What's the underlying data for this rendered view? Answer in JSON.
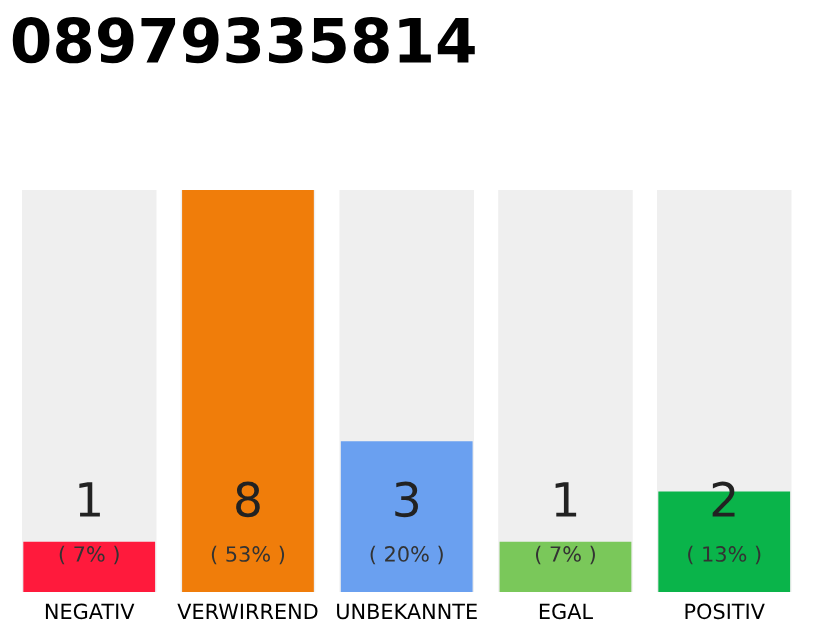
{
  "chart_data": {
    "type": "bar",
    "title": "08979335814",
    "categories": [
      "NEGATIV",
      "VERWIRREND",
      "UNBEKANNTE",
      "EGAL",
      "POSITIV"
    ],
    "values": [
      1,
      8,
      3,
      1,
      2
    ],
    "colors": [
      "#ff1a3c",
      "#f07d0a",
      "#6aa0f0",
      "#7ac85a",
      "#0ab44a"
    ],
    "data_labels": true,
    "annotations": [
      "( 7% )",
      "( 53% )",
      "( 20% )",
      "( 7% )",
      "( 13% )"
    ],
    "grid": false,
    "legend": false
  }
}
